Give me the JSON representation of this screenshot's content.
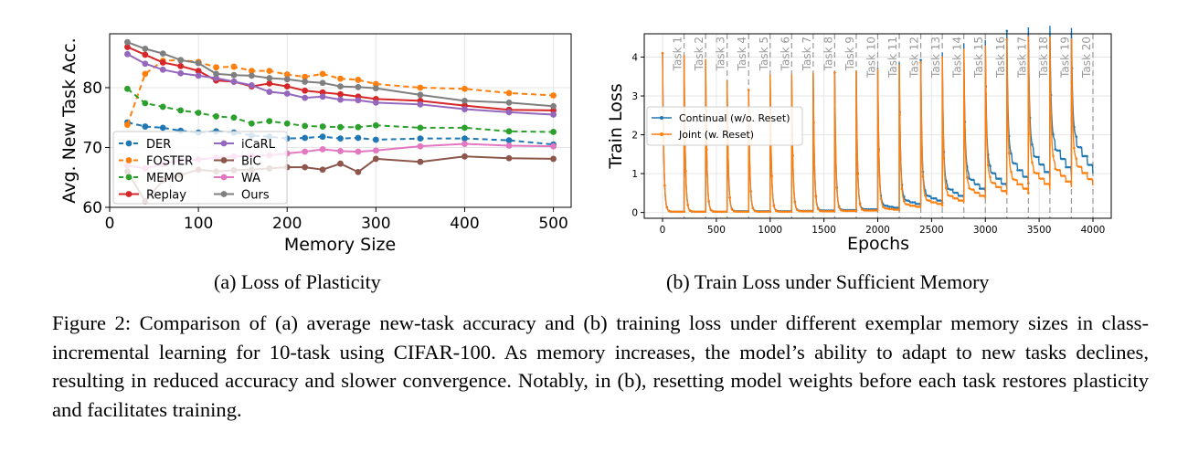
{
  "figure_a": {
    "caption": "(a) Loss of Plasticity",
    "chart_data": {
      "type": "line",
      "title": "",
      "xlabel": "Memory Size",
      "ylabel": "Avg. New Task Acc.",
      "xlim": [
        0,
        520
      ],
      "ylim": [
        60,
        89
      ],
      "xticks": [
        0,
        100,
        200,
        300,
        400,
        500
      ],
      "yticks": [
        60,
        70,
        80
      ],
      "grid": true,
      "legend_position": "lower-left",
      "legend_columns": 2,
      "x": [
        20,
        40,
        60,
        80,
        100,
        120,
        140,
        160,
        180,
        200,
        220,
        240,
        260,
        280,
        300,
        350,
        400,
        450,
        500
      ],
      "series": [
        {
          "name": "DER",
          "color": "#1f77b4",
          "style": "dashed",
          "values": [
            74.2,
            73.5,
            73.3,
            72.8,
            72.5,
            72.7,
            72.5,
            72.0,
            71.8,
            71.5,
            71.6,
            71.8,
            71.5,
            71.6,
            71.3,
            71.5,
            71.5,
            71.2,
            70.5
          ]
        },
        {
          "name": "FOSTER",
          "color": "#ff7f0e",
          "style": "dashed",
          "values": [
            73.8,
            82.3,
            84.5,
            84.6,
            84.3,
            83.4,
            83.5,
            82.8,
            82.8,
            82.2,
            81.8,
            82.3,
            81.5,
            81.3,
            80.6,
            80.0,
            79.8,
            79.1,
            78.7
          ]
        },
        {
          "name": "MEMO",
          "color": "#2ca02c",
          "style": "dashed",
          "values": [
            79.8,
            77.4,
            76.8,
            76.2,
            75.8,
            75.2,
            75.0,
            74.0,
            74.4,
            74.0,
            73.6,
            73.5,
            73.4,
            73.4,
            73.7,
            73.3,
            73.3,
            72.7,
            72.6
          ]
        },
        {
          "name": "Replay",
          "color": "#d62728",
          "style": "solid",
          "values": [
            86.8,
            85.5,
            84.2,
            83.6,
            82.8,
            81.2,
            81.0,
            80.2,
            80.7,
            80.2,
            79.5,
            79.2,
            78.9,
            78.5,
            78.1,
            77.8,
            77.0,
            76.3,
            76.2
          ]
        },
        {
          "name": "iCaRL",
          "color": "#9467bd",
          "style": "solid",
          "values": [
            85.6,
            84.0,
            83.0,
            82.4,
            82.0,
            81.6,
            81.0,
            80.4,
            79.3,
            79.0,
            78.3,
            78.5,
            78.0,
            77.9,
            77.5,
            77.2,
            76.4,
            75.9,
            75.5
          ]
        },
        {
          "name": "BiC",
          "color": "#8c564b",
          "style": "solid",
          "values": [
            66.0,
            61.0,
            64.5,
            65.4,
            66.3,
            66.0,
            66.2,
            66.3,
            66.5,
            66.7,
            66.7,
            66.3,
            67.3,
            65.9,
            68.1,
            67.6,
            68.5,
            68.2,
            68.1
          ]
        },
        {
          "name": "WA",
          "color": "#e377c2",
          "style": "solid",
          "values": [
            67.0,
            66.5,
            67.2,
            67.9,
            68.0,
            68.3,
            68.5,
            68.6,
            68.7,
            69.0,
            69.3,
            69.7,
            69.4,
            69.3,
            69.5,
            70.2,
            70.6,
            70.3,
            70.2
          ]
        },
        {
          "name": "Ours",
          "color": "#7f7f7f",
          "style": "solid",
          "values": [
            87.6,
            86.5,
            85.7,
            84.6,
            84.1,
            82.3,
            82.1,
            82.0,
            81.6,
            81.4,
            81.0,
            80.8,
            80.2,
            80.1,
            79.9,
            78.8,
            77.8,
            77.5,
            76.9
          ]
        }
      ]
    }
  },
  "figure_b": {
    "caption": "(b) Train Loss under Sufficient Memory",
    "chart_data": {
      "type": "line",
      "title": "",
      "xlabel": "Epochs",
      "ylabel": "Train Loss",
      "xlim": [
        -170,
        4170
      ],
      "ylim": [
        -0.15,
        4.6
      ],
      "xticks": [
        0,
        500,
        1000,
        1500,
        2000,
        2500,
        3000,
        3500,
        4000
      ],
      "yticks": [
        0,
        1,
        2,
        3,
        4
      ],
      "grid": true,
      "legend_position": "middle-left",
      "task_labels": [
        "Task 1",
        "Task 2",
        "Task 3",
        "Task 4",
        "Task 5",
        "Task 6",
        "Task 7",
        "Task 8",
        "Task 9",
        "Task 10",
        "Task 11",
        "Task 12",
        "Task 13",
        "Task 14",
        "Task 15",
        "Task 16",
        "Task 17",
        "Task 18",
        "Task 19",
        "Task 20"
      ],
      "task_boundaries": [
        200,
        400,
        600,
        800,
        1000,
        1200,
        1400,
        1600,
        1800,
        2000,
        2200,
        2400,
        2600,
        2800,
        3000,
        3200,
        3400,
        3600,
        3800,
        4000
      ],
      "epochs_per_task": 200,
      "series": [
        {
          "name": "Continual (w/o. Reset)",
          "color": "#1f77b4",
          "task_peaks": [
            4.1,
            4.05,
            3.95,
            3.4,
            3.15,
            3.55,
            3.55,
            3.6,
            3.6,
            3.65,
            3.65,
            3.7,
            3.7,
            3.8,
            3.9,
            3.9,
            4.0,
            4.0,
            3.95,
            3.85
          ],
          "task_end_loss": [
            0.02,
            0.02,
            0.02,
            0.03,
            0.03,
            0.03,
            0.04,
            0.05,
            0.06,
            0.08,
            0.1,
            0.18,
            0.25,
            0.35,
            0.5,
            0.6,
            0.75,
            0.85,
            0.95,
            1.0
          ]
        },
        {
          "name": "Joint (w. Reset)",
          "color": "#ff7f0e",
          "task_peaks": [
            4.1,
            4.05,
            3.95,
            3.4,
            3.15,
            3.55,
            3.55,
            3.6,
            3.6,
            3.65,
            3.65,
            3.7,
            3.7,
            3.8,
            3.9,
            3.9,
            4.0,
            4.0,
            3.95,
            3.85
          ],
          "task_end_loss": [
            0.02,
            0.02,
            0.02,
            0.02,
            0.02,
            0.02,
            0.03,
            0.03,
            0.04,
            0.05,
            0.06,
            0.12,
            0.18,
            0.25,
            0.35,
            0.45,
            0.5,
            0.6,
            0.65,
            0.7
          ]
        }
      ]
    }
  },
  "caption": "Figure 2: Comparison of (a) average new-task accuracy and (b) training loss under different exemplar memory sizes in class-incremental learning for 10-task using CIFAR-100. As memory increases, the model’s ability to adapt to new tasks declines, resulting in reduced accuracy and slower convergence. Notably, in (b), resetting model weights before each task restores plasticity and facilitates training."
}
